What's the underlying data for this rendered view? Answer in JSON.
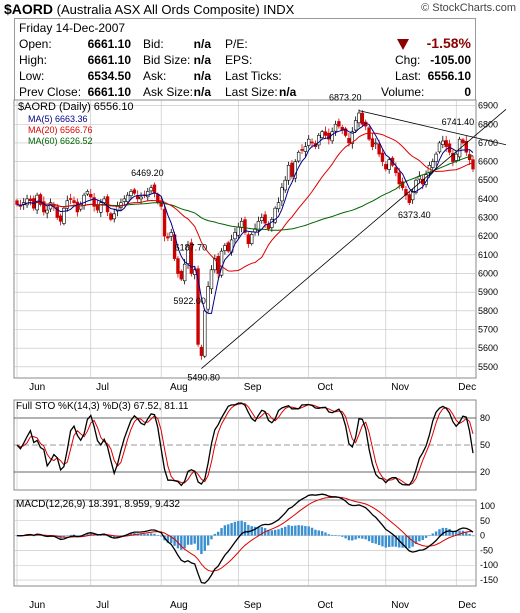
{
  "header": {
    "symbol": "$AORD",
    "name": "(Australia ASX All Ords Composite)",
    "exchange": "INDX",
    "credit": "© StockCharts.com"
  },
  "quote": {
    "date": "Friday  14-Dec-2007",
    "change_pct": "-1.58%",
    "rows": [
      {
        "label": "Open:",
        "value": "6661.10",
        "label2": "Bid:",
        "value2": "n/a",
        "label3": "P/E:",
        "value3": ""
      },
      {
        "label": "High:",
        "value": "6661.10",
        "label2": "Bid Size:",
        "value2": "n/a",
        "label3": "EPS:",
        "value3": "-105.00"
      },
      {
        "label": "Low:",
        "value": "6534.50",
        "label2": "Ask:",
        "value2": "n/a",
        "label3": "Last Ticks:",
        "value3": "6556.10"
      },
      {
        "label": "Prev Close:",
        "value": "6661.10",
        "label2": "Ask Size:",
        "value2": "n/a",
        "label3": "Last Size:",
        "value3": "0"
      }
    ],
    "chg_label": "Chg:",
    "last_label": "Last:",
    "volume_label": "Volume:",
    "last_size_value": "n/a"
  },
  "colors": {
    "up": "#000000",
    "down": "#cc0000",
    "ma5": "#00008b",
    "ma20": "#dd0000",
    "ma60": "#006400",
    "signal": "#dd0000",
    "histogram": "#3a8fd0",
    "grid": "#bfbfbf"
  },
  "chart_data": [
    {
      "type": "candlestick",
      "title": "$AORD (Daily) 6556.10",
      "legend": [
        {
          "name": "MA(5) 6663.36",
          "color": "#00008b"
        },
        {
          "name": "MA(20) 6566.76",
          "color": "#dd0000"
        },
        {
          "name": "MA(60) 6626.52",
          "color": "#006400"
        }
      ],
      "legend_placement": "top-left",
      "x_tick_labels": [
        "Jun",
        "Jul",
        "Aug",
        "Sep",
        "Oct",
        "Nov",
        "Dec"
      ],
      "y_ticks": [
        5500,
        5600,
        5700,
        5800,
        5900,
        6000,
        6100,
        6200,
        6300,
        6400,
        6500,
        6600,
        6700,
        6800,
        6900
      ],
      "ylim": [
        5440,
        6930
      ],
      "grid": true,
      "annotations": [
        {
          "label": "6469.20",
          "value": 6469.2
        },
        {
          "label": "6187.70",
          "value": 6187.7
        },
        {
          "label": "5922.00",
          "value": 5922.0
        },
        {
          "label": "5490.80",
          "value": 5490.8
        },
        {
          "label": "6873.20",
          "value": 6873.2
        },
        {
          "label": "6741.40",
          "value": 6741.4
        },
        {
          "label": "6373.40",
          "value": 6373.4
        }
      ],
      "close_series": [
        6370,
        6360,
        6380,
        6400,
        6390,
        6350,
        6420,
        6370,
        6330,
        6340,
        6380,
        6360,
        6300,
        6280,
        6350,
        6390,
        6400,
        6380,
        6330,
        6370,
        6420,
        6440,
        6410,
        6360,
        6340,
        6380,
        6400,
        6330,
        6290,
        6320,
        6360,
        6380,
        6400,
        6420,
        6440,
        6430,
        6400,
        6410,
        6420,
        6440,
        6460,
        6430,
        6380,
        6360,
        6200,
        6190,
        6220,
        6080,
        6000,
        5970,
        6050,
        6150,
        6000,
        6020,
        5620,
        5560,
        5800,
        5930,
        6020,
        6080,
        6000,
        6120,
        6150,
        6120,
        6180,
        6220,
        6250,
        6280,
        6220,
        6160,
        6210,
        6240,
        6280,
        6300,
        6270,
        6240,
        6290,
        6350,
        6380,
        6460,
        6500,
        6580,
        6520,
        6600,
        6650,
        6660,
        6680,
        6720,
        6700,
        6680,
        6740,
        6760,
        6740,
        6720,
        6760,
        6800,
        6790,
        6770,
        6740,
        6700,
        6760,
        6820,
        6860,
        6800,
        6790,
        6720,
        6680,
        6700,
        6640,
        6600,
        6560,
        6610,
        6580,
        6540,
        6480,
        6460,
        6420,
        6380,
        6440,
        6500,
        6520,
        6480,
        6530,
        6580,
        6600,
        6640,
        6700,
        6710,
        6680,
        6650,
        6600,
        6640,
        6720,
        6700,
        6650,
        6610,
        6560
      ]
    },
    {
      "type": "line",
      "title": "Full STO %K(14,3) %D(3) 67.52, 81.11",
      "series_names": [
        "%K(14,3)",
        "%D(3)"
      ],
      "values_last": [
        67.52,
        81.11
      ],
      "y_ticks": [
        20,
        50,
        80
      ],
      "ylim": [
        0,
        100
      ],
      "grid": true
    },
    {
      "type": "line",
      "title": "MACD(12,26,9) 18.391, 8.959, 9.432",
      "series_names": [
        "MACD(12,26,9)",
        "signal",
        "histogram"
      ],
      "values_last": [
        18.391,
        8.959,
        9.432
      ],
      "y_ticks": [
        100,
        50,
        0,
        -50,
        -100,
        -150
      ],
      "ylim": [
        -170,
        120
      ],
      "grid": true
    }
  ]
}
